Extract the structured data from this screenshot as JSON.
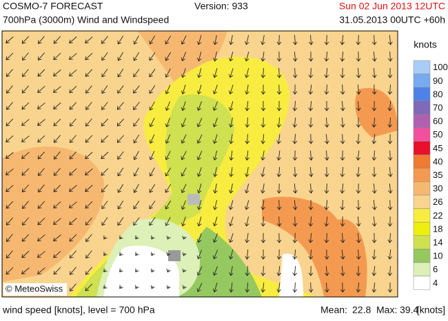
{
  "header": {
    "title": "COSMO-7 FORECAST",
    "subtitle": "700hPa (3000m) Wind and Windspeed",
    "version": "Version: 933",
    "valid_time": "Sun 02 Jun 2013 12UTC",
    "run_time": "31.05.2013 00UTC +60h"
  },
  "copyright": "© MeteoSwiss",
  "legend": {
    "unit": "knots",
    "levels": [
      {
        "value": 100,
        "color": "#a8cdf6"
      },
      {
        "value": 90,
        "color": "#78aaf0"
      },
      {
        "value": 80,
        "color": "#4f82e8"
      },
      {
        "value": 70,
        "color": "#7f6ab8"
      },
      {
        "value": 60,
        "color": "#b060b0"
      },
      {
        "value": 50,
        "color": "#f2509e"
      },
      {
        "value": 45,
        "color": "#e8102a"
      },
      {
        "value": 40,
        "color": "#f07a30"
      },
      {
        "value": 35,
        "color": "#f49a50"
      },
      {
        "value": 30,
        "color": "#f6b870"
      },
      {
        "value": 26,
        "color": "#f9d48e"
      },
      {
        "value": 22,
        "color": "#f8ec40"
      },
      {
        "value": 18,
        "color": "#eeee10"
      },
      {
        "value": 14,
        "color": "#cfe050"
      },
      {
        "value": 10,
        "color": "#96c860"
      },
      {
        "value": 6,
        "color": "#dcf0b8"
      },
      {
        "value": 4,
        "color": "#ffffff"
      }
    ]
  },
  "footer": {
    "variable": "wind speed [knots], level = 700 hPa",
    "mean_label": "Mean:",
    "mean": 22.8,
    "max_label": "Max:",
    "max": 39.4,
    "unit": "[knots]"
  }
}
